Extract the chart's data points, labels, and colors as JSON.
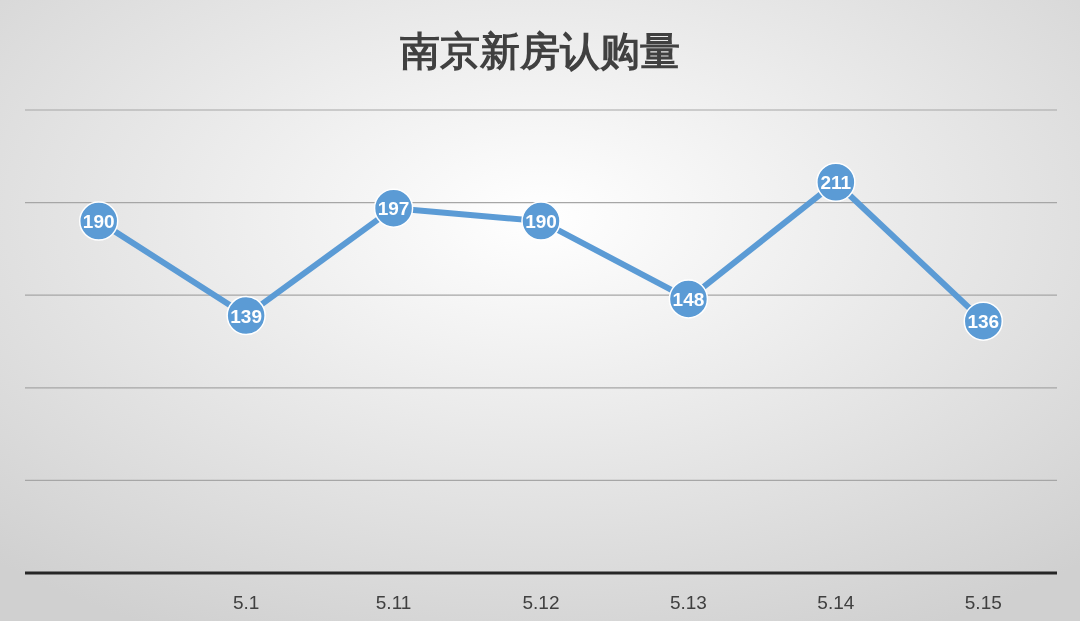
{
  "chart_data": {
    "type": "line",
    "title": "南京新房认购量",
    "categories": [
      null,
      "5.1",
      "5.11",
      "5.12",
      "5.13",
      "5.14",
      "5.15"
    ],
    "series": [
      {
        "color": "#5b9bd5",
        "values": [
          190,
          139,
          197,
          190,
          148,
          211,
          136
        ]
      }
    ],
    "ylim": [
      0,
      250
    ],
    "yticks": [
      {
        "value": 0,
        "label": null
      },
      {
        "value": 50,
        "label": null
      },
      {
        "value": 100,
        "label": null
      },
      {
        "value": 150,
        "label": null
      },
      {
        "value": 200,
        "label": null
      },
      {
        "value": 250,
        "label": null
      }
    ],
    "grid": "y",
    "tick_labels": "x",
    "marker": "circle",
    "line_style": "solid",
    "data_labels": true
  }
}
